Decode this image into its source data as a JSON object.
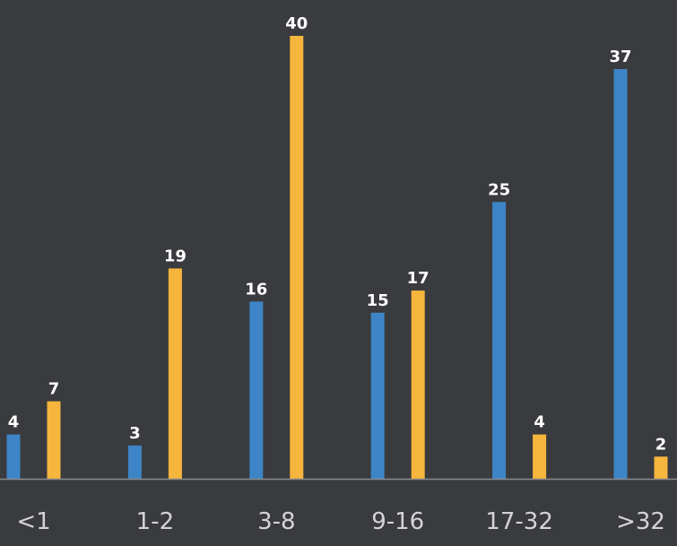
{
  "chart_data": {
    "type": "bar",
    "categories": [
      "<1",
      "1-2",
      "3-8",
      "9-16",
      "17-32",
      ">32"
    ],
    "series": [
      {
        "values": [
          4,
          3,
          16,
          15,
          25,
          37
        ],
        "color": "#3d85c6"
      },
      {
        "values": [
          7,
          19,
          40,
          17,
          4,
          2
        ],
        "color": "#f6b53c"
      }
    ],
    "ylim": [
      0,
      40
    ],
    "grid": false,
    "legend": "none",
    "data_labels": true,
    "background": "#3a3b3f",
    "baseline_color": "#8a8b8f"
  }
}
